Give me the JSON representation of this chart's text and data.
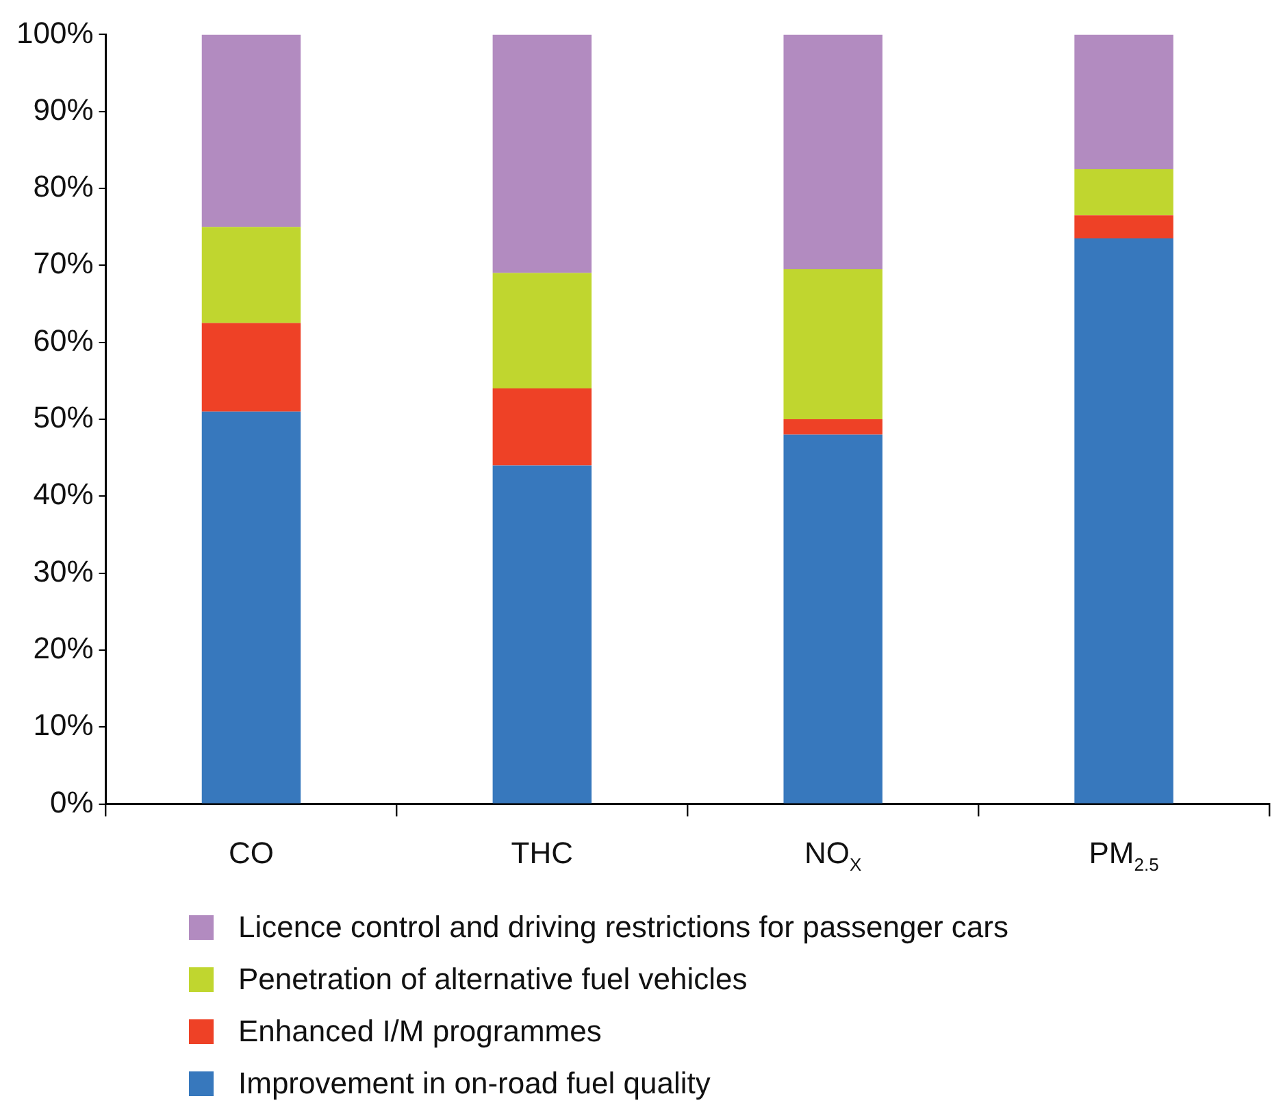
{
  "chart_data": {
    "type": "bar",
    "stacked": true,
    "categories": [
      "CO",
      "THC",
      "NO$_{X}$",
      "PM$_{2.5}$"
    ],
    "series": [
      {
        "name": "Improvement in on-road fuel quality",
        "color": "#3778bd",
        "values": [
          51,
          44,
          48,
          73.5
        ]
      },
      {
        "name": "Enhanced I/M programmes",
        "color": "#ee4126",
        "values": [
          11.5,
          10,
          2,
          3
        ]
      },
      {
        "name": "Penetration of alternative fuel vehicles",
        "color": "#c0d62f",
        "values": [
          12.5,
          15,
          19.5,
          6
        ]
      },
      {
        "name": "Licence control and driving restrictions for passenger cars",
        "color": "#b28bc0",
        "values": [
          25,
          31,
          30.5,
          17.5
        ]
      }
    ],
    "ylim": [
      0,
      100
    ],
    "yticks": [
      {
        "value": 0,
        "label": "0%"
      },
      {
        "value": 10,
        "label": "10%"
      },
      {
        "value": 20,
        "label": "20%"
      },
      {
        "value": 30,
        "label": "30%"
      },
      {
        "value": 40,
        "label": "40%"
      },
      {
        "value": 50,
        "label": "50%"
      },
      {
        "value": 60,
        "label": "60%"
      },
      {
        "value": 70,
        "label": "70%"
      },
      {
        "value": 80,
        "label": "80%"
      },
      {
        "value": 90,
        "label": "90%"
      },
      {
        "value": 100,
        "label": "100%"
      }
    ],
    "grid": false,
    "legend": "bottom"
  }
}
